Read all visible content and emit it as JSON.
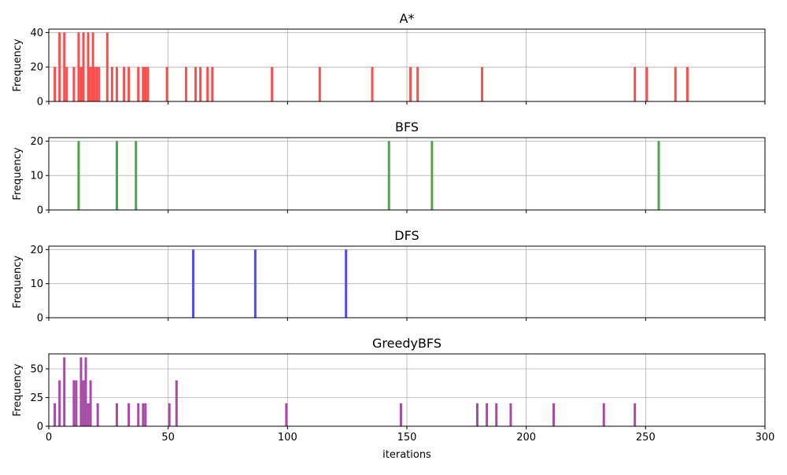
{
  "chart_data": [
    {
      "type": "bar",
      "title": "A*",
      "xlabel": "",
      "ylabel": "Frequency",
      "xlim": [
        0,
        300
      ],
      "ylim": [
        0,
        42
      ],
      "yticks": [
        0,
        20,
        40
      ],
      "grid": true,
      "color": "#ff4d4d",
      "bars": [
        {
          "x": 2.5,
          "y": 20
        },
        {
          "x": 4.5,
          "y": 40
        },
        {
          "x": 6.5,
          "y": 40
        },
        {
          "x": 7.5,
          "y": 20
        },
        {
          "x": 10.5,
          "y": 20
        },
        {
          "x": 12.5,
          "y": 40
        },
        {
          "x": 13.5,
          "y": 20
        },
        {
          "x": 14.5,
          "y": 40
        },
        {
          "x": 16.5,
          "y": 40
        },
        {
          "x": 17,
          "y": 20
        },
        {
          "x": 18,
          "y": 20
        },
        {
          "x": 18.5,
          "y": 40
        },
        {
          "x": 19,
          "y": 20
        },
        {
          "x": 20,
          "y": 20
        },
        {
          "x": 21,
          "y": 20
        },
        {
          "x": 24.5,
          "y": 40
        },
        {
          "x": 26.5,
          "y": 20
        },
        {
          "x": 28.5,
          "y": 20
        },
        {
          "x": 31.5,
          "y": 20
        },
        {
          "x": 33.5,
          "y": 20
        },
        {
          "x": 37.5,
          "y": 20
        },
        {
          "x": 39.5,
          "y": 20
        },
        {
          "x": 40.5,
          "y": 20
        },
        {
          "x": 41.5,
          "y": 20
        },
        {
          "x": 49.5,
          "y": 20
        },
        {
          "x": 57.5,
          "y": 20
        },
        {
          "x": 61.5,
          "y": 20
        },
        {
          "x": 63.5,
          "y": 20
        },
        {
          "x": 66.5,
          "y": 20
        },
        {
          "x": 68.5,
          "y": 20
        },
        {
          "x": 93.5,
          "y": 20
        },
        {
          "x": 113.5,
          "y": 20
        },
        {
          "x": 135.5,
          "y": 20
        },
        {
          "x": 151.5,
          "y": 20
        },
        {
          "x": 154.5,
          "y": 20
        },
        {
          "x": 181.5,
          "y": 20
        },
        {
          "x": 245.5,
          "y": 20
        },
        {
          "x": 250.5,
          "y": 20
        },
        {
          "x": 262.5,
          "y": 20
        },
        {
          "x": 267.5,
          "y": 20
        }
      ]
    },
    {
      "type": "bar",
      "title": "BFS",
      "xlabel": "",
      "ylabel": "Frequency",
      "xlim": [
        0,
        300
      ],
      "ylim": [
        0,
        21
      ],
      "yticks": [
        0,
        10,
        20
      ],
      "grid": true,
      "color": "#4ca64c",
      "bars": [
        {
          "x": 12.5,
          "y": 20
        },
        {
          "x": 28.5,
          "y": 20
        },
        {
          "x": 36.5,
          "y": 20
        },
        {
          "x": 142.5,
          "y": 20
        },
        {
          "x": 160.5,
          "y": 20
        },
        {
          "x": 255.5,
          "y": 20
        }
      ]
    },
    {
      "type": "bar",
      "title": "DFS",
      "xlabel": "",
      "ylabel": "Frequency",
      "xlim": [
        0,
        300
      ],
      "ylim": [
        0,
        21
      ],
      "yticks": [
        0,
        10,
        20
      ],
      "grid": true,
      "color": "#4d4dff",
      "bars": [
        {
          "x": 60.5,
          "y": 20
        },
        {
          "x": 86.5,
          "y": 20
        },
        {
          "x": 124.5,
          "y": 20
        }
      ]
    },
    {
      "type": "bar",
      "title": "GreedyBFS",
      "xlabel": "iterations",
      "ylabel": "Frequency",
      "xlim": [
        0,
        300
      ],
      "ylim": [
        0,
        63
      ],
      "yticks": [
        0,
        25,
        50
      ],
      "xticks": [
        0,
        50,
        100,
        150,
        200,
        250,
        300
      ],
      "grid": true,
      "color": "#a64ca6",
      "bars": [
        {
          "x": 2.5,
          "y": 20
        },
        {
          "x": 4.5,
          "y": 40
        },
        {
          "x": 6.5,
          "y": 60
        },
        {
          "x": 10.5,
          "y": 40
        },
        {
          "x": 11.5,
          "y": 40
        },
        {
          "x": 13.5,
          "y": 60
        },
        {
          "x": 14.5,
          "y": 40
        },
        {
          "x": 15.5,
          "y": 60
        },
        {
          "x": 16.5,
          "y": 20
        },
        {
          "x": 17.5,
          "y": 40
        },
        {
          "x": 20.5,
          "y": 20
        },
        {
          "x": 28.5,
          "y": 20
        },
        {
          "x": 33.5,
          "y": 20
        },
        {
          "x": 37.5,
          "y": 20
        },
        {
          "x": 39.5,
          "y": 20
        },
        {
          "x": 40.5,
          "y": 20
        },
        {
          "x": 50.5,
          "y": 20
        },
        {
          "x": 53.5,
          "y": 40
        },
        {
          "x": 99.5,
          "y": 20
        },
        {
          "x": 147.5,
          "y": 20
        },
        {
          "x": 179.5,
          "y": 20
        },
        {
          "x": 183.5,
          "y": 20
        },
        {
          "x": 187.5,
          "y": 20
        },
        {
          "x": 193.5,
          "y": 20
        },
        {
          "x": 211.5,
          "y": 20
        },
        {
          "x": 232.5,
          "y": 20
        },
        {
          "x": 245.5,
          "y": 20
        }
      ]
    }
  ]
}
